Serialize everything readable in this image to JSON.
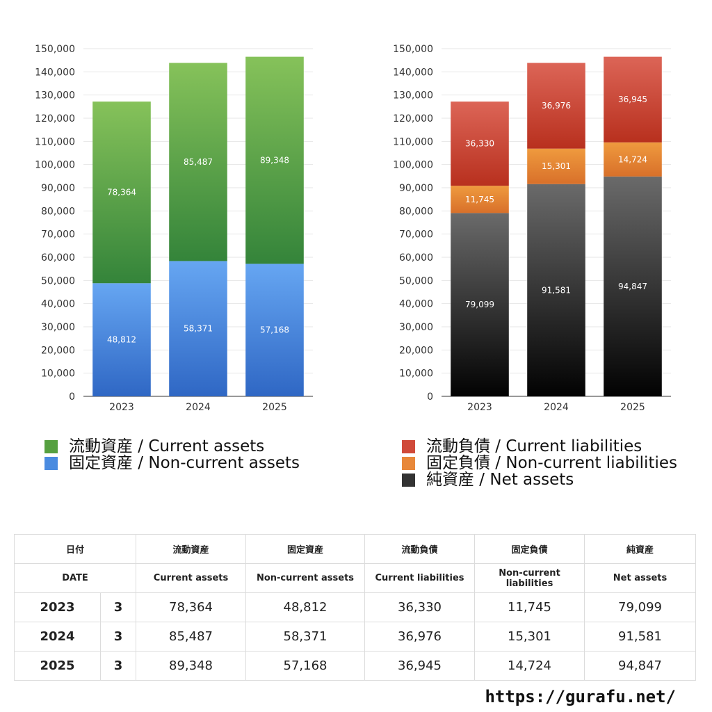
{
  "chart_data": [
    {
      "type": "bar",
      "stacked": true,
      "categories": [
        "2023",
        "2024",
        "2025"
      ],
      "ylim": [
        0,
        150000
      ],
      "yticks": [
        "0",
        "10,000",
        "20,000",
        "30,000",
        "40,000",
        "50,000",
        "60,000",
        "70,000",
        "80,000",
        "90,000",
        "100,000",
        "110,000",
        "120,000",
        "130,000",
        "140,000",
        "150,000"
      ],
      "grid": true,
      "series": [
        {
          "name": "固定資産 / Non-current assets",
          "values": [
            48812,
            58371,
            57168
          ],
          "labels": [
            "48,812",
            "58,371",
            "57,168"
          ],
          "color_top": "#66a6f2",
          "color_bottom": "#2f67c4"
        },
        {
          "name": "流動資産 / Current assets",
          "values": [
            78364,
            85487,
            89348
          ],
          "labels": [
            "78,364",
            "85,487",
            "89,348"
          ],
          "color_top": "#86c25a",
          "color_bottom": "#34843a"
        }
      ]
    },
    {
      "type": "bar",
      "stacked": true,
      "categories": [
        "2023",
        "2024",
        "2025"
      ],
      "ylim": [
        0,
        150000
      ],
      "yticks": [
        "0",
        "10,000",
        "20,000",
        "30,000",
        "40,000",
        "50,000",
        "60,000",
        "70,000",
        "80,000",
        "90,000",
        "100,000",
        "110,000",
        "120,000",
        "130,000",
        "140,000",
        "150,000"
      ],
      "grid": true,
      "series": [
        {
          "name": "純資産 / Net assets",
          "values": [
            79099,
            91581,
            94847
          ],
          "labels": [
            "79,099",
            "91,581",
            "94,847"
          ],
          "color_top": "#6a6a6a",
          "color_bottom": "#020202"
        },
        {
          "name": "固定負債 / Non-current liabilities",
          "values": [
            11745,
            15301,
            14724
          ],
          "labels": [
            "11,745",
            "15,301",
            "14,724"
          ],
          "color_top": "#ef9a3e",
          "color_bottom": "#d8702a"
        },
        {
          "name": "流動負債 / Current liabilities",
          "values": [
            36330,
            36976,
            36945
          ],
          "labels": [
            "36,330",
            "36,976",
            "36,945"
          ],
          "color_top": "#dc6557",
          "color_bottom": "#b8301e"
        }
      ]
    }
  ],
  "legends": {
    "assets": [
      {
        "label": "流動資産 / Current assets",
        "color": "#56a040"
      },
      {
        "label": "固定資産 / Non-current assets",
        "color": "#4a8be0"
      }
    ],
    "liabilities": [
      {
        "label": "流動負債 / Current liabilities",
        "color": "#d04a3a"
      },
      {
        "label": "固定負債 / Non-current liabilities",
        "color": "#e8883a"
      },
      {
        "label": "純資産 / Net assets",
        "color": "#333333"
      }
    ]
  },
  "table": {
    "header_jp": [
      "日付",
      "流動資産",
      "固定資産",
      "流動負債",
      "固定負債",
      "純資産"
    ],
    "header_en": [
      "DATE",
      "Current assets",
      "Non-current assets",
      "Current liabilities",
      "Non-current liabilities",
      "Net assets"
    ],
    "rows": [
      {
        "year": "2023",
        "month": "3",
        "values": [
          "78,364",
          "48,812",
          "36,330",
          "11,745",
          "79,099"
        ]
      },
      {
        "year": "2024",
        "month": "3",
        "values": [
          "85,487",
          "58,371",
          "36,976",
          "15,301",
          "91,581"
        ]
      },
      {
        "year": "2025",
        "month": "3",
        "values": [
          "89,348",
          "57,168",
          "36,945",
          "14,724",
          "94,847"
        ]
      }
    ]
  },
  "footer": {
    "url": "https://gurafu.net/"
  }
}
